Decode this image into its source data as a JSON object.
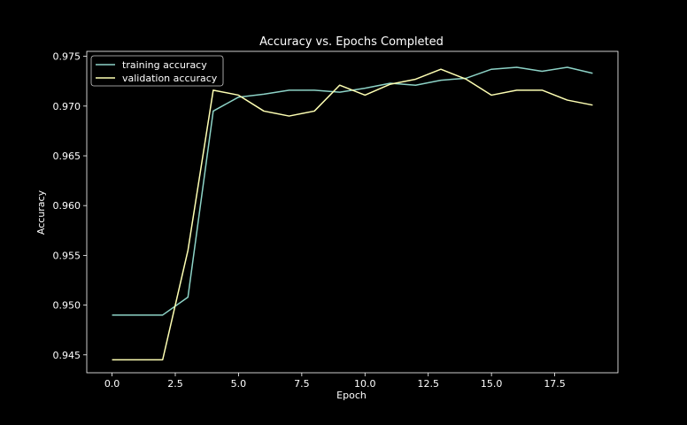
{
  "chart_data": {
    "type": "line",
    "title": "Accuracy vs. Epochs Completed",
    "xlabel": "Epoch",
    "ylabel": "Accuracy",
    "xlim": [
      -1.0,
      20.0
    ],
    "ylim": [
      0.9432,
      0.9755
    ],
    "x_ticks": [
      0.0,
      2.5,
      5.0,
      7.5,
      10.0,
      12.5,
      15.0,
      17.5
    ],
    "x_tick_labels": [
      "0.0",
      "2.5",
      "5.0",
      "7.5",
      "10.0",
      "12.5",
      "15.0",
      "17.5"
    ],
    "y_ticks": [
      0.945,
      0.95,
      0.955,
      0.96,
      0.965,
      0.97,
      0.975
    ],
    "y_tick_labels": [
      "0.945",
      "0.950",
      "0.955",
      "0.960",
      "0.965",
      "0.970",
      "0.975"
    ],
    "grid": false,
    "legend_position": "top-left",
    "x": [
      0,
      1,
      2,
      3,
      4,
      5,
      6,
      7,
      8,
      9,
      10,
      11,
      12,
      13,
      14,
      15,
      16,
      17,
      18,
      19
    ],
    "series": [
      {
        "name": "training accuracy",
        "color": "#8dd3c7",
        "values": [
          0.949,
          0.949,
          0.949,
          0.9508,
          0.9695,
          0.9709,
          0.9712,
          0.9716,
          0.9716,
          0.9714,
          0.9718,
          0.9723,
          0.9721,
          0.9726,
          0.9728,
          0.9737,
          0.9739,
          0.9735,
          0.9739,
          0.9733
        ]
      },
      {
        "name": "validation accuracy",
        "color": "#feffb3",
        "values": [
          0.9445,
          0.9445,
          0.9445,
          0.9555,
          0.9716,
          0.9711,
          0.9695,
          0.969,
          0.9695,
          0.9721,
          0.9711,
          0.9722,
          0.9727,
          0.9737,
          0.9727,
          0.9711,
          0.9716,
          0.9716,
          0.9706,
          0.9701
        ]
      }
    ]
  }
}
